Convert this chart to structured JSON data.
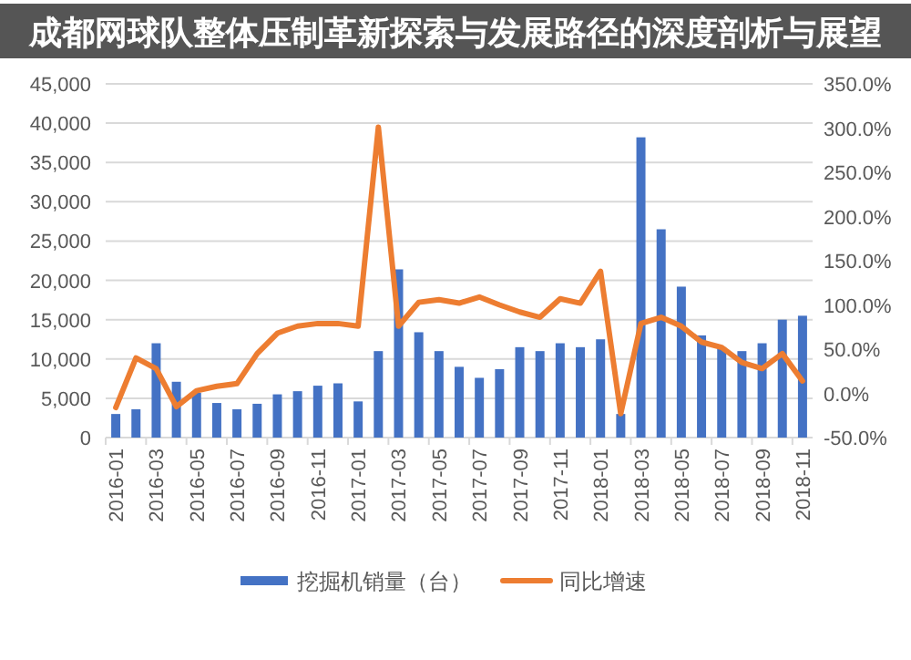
{
  "chart_data": {
    "type": "bar",
    "title": "成都网球队整体压制革新探索与发展路径的深度剖析与展望",
    "categories": [
      "2016-01",
      null,
      "2016-03",
      null,
      "2016-05",
      null,
      "2016-07",
      null,
      "2016-09",
      null,
      "2016-11",
      null,
      "2017-01",
      null,
      "2017-03",
      null,
      "2017-05",
      null,
      "2017-07",
      null,
      "2017-09",
      null,
      "2017-11",
      null,
      "2018-01",
      null,
      "2018-03",
      null,
      "2018-05",
      null,
      "2018-07",
      null,
      "2018-09",
      null,
      "2018-11"
    ],
    "series": [
      {
        "name": "挖掘机销量（台）",
        "color": "#4472c4",
        "values": [
          3000,
          3600,
          12000,
          7100,
          5700,
          4400,
          3600,
          4300,
          5500,
          5900,
          6600,
          6900,
          4600,
          11000,
          21400,
          13400,
          11000,
          9000,
          7600,
          8700,
          11500,
          11000,
          12000,
          11500,
          12500,
          3000,
          38200,
          26500,
          19200,
          13000,
          11500,
          11000,
          12000,
          15000,
          15500
        ]
      },
      {
        "name": "同比增速",
        "type": "line",
        "axis": "y2",
        "color": "#ed7d31",
        "values": [
          -16,
          40,
          28,
          -15,
          3,
          8,
          11,
          45,
          68,
          76,
          79,
          79,
          76,
          301,
          76,
          103,
          106,
          102,
          109,
          100,
          92,
          86,
          107,
          102,
          138,
          -23,
          79,
          86,
          76,
          58,
          52,
          35,
          28,
          45,
          14
        ]
      }
    ],
    "ylim": [
      0,
      45000
    ],
    "yticks": [
      0,
      {
        "value": 5000,
        "label": "5,000"
      },
      {
        "value": 10000,
        "label": "10,000"
      },
      {
        "value": 15000,
        "label": "15,000"
      },
      {
        "value": 20000,
        "label": "20,000"
      },
      {
        "value": 25000,
        "label": "25,000"
      },
      {
        "value": 30000,
        "label": "30,000"
      },
      {
        "value": 35000,
        "label": "35,000"
      },
      {
        "value": 40000,
        "label": "40,000"
      },
      {
        "value": 45000,
        "label": "45,000"
      }
    ],
    "y2lim": [
      -50,
      350
    ],
    "y2ticks": [
      {
        "value": -50,
        "label": "-50.0%"
      },
      {
        "value": 0,
        "label": "0.0%"
      },
      {
        "value": 50,
        "label": "50.0%"
      },
      {
        "value": 100,
        "label": "100.0%"
      },
      {
        "value": 150,
        "label": "150.0%"
      },
      {
        "value": 200,
        "label": "200.0%"
      },
      {
        "value": 250,
        "label": "250.0%"
      },
      {
        "value": 300,
        "label": "300.0%"
      },
      {
        "value": 350,
        "label": "350.0%"
      }
    ],
    "grid": "y",
    "legend": "bottom"
  }
}
